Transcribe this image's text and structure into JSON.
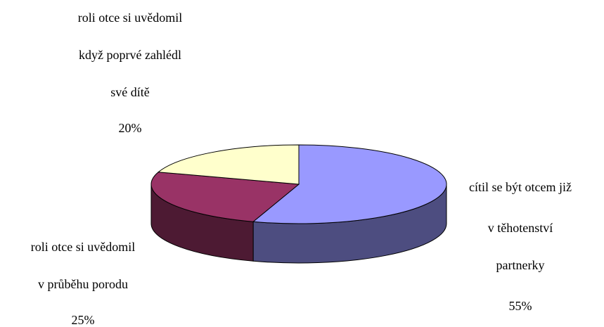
{
  "chart_data": {
    "type": "pie",
    "categories": [
      [
        "cítil se být otcem již",
        "v těhotenství",
        "partnerky"
      ],
      [
        "roli otce si uvědomil",
        "v průběhu porodu"
      ],
      [
        "roli otce si uvědomil",
        "když poprvé zahlédl",
        "své dítě"
      ]
    ],
    "values": [
      55,
      25,
      20
    ],
    "value_labels": [
      "55%",
      "25%",
      "20%"
    ],
    "colors": [
      "#9999ff",
      "#993366",
      "#ffffcc"
    ],
    "side_colors": [
      "#4d4d80",
      "#4d1a33",
      "#80806a"
    ],
    "three_d": true
  }
}
